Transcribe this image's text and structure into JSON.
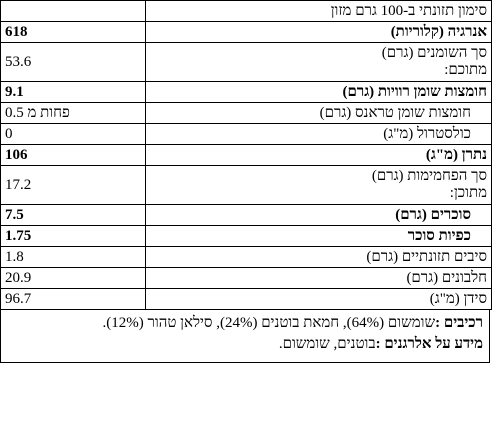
{
  "header": "סימון תזונתי ב-100 גרם מזון",
  "rows": [
    {
      "label": "אנרגיה (קלוריות)",
      "value": "618",
      "bold": true
    },
    {
      "label": "סך השומנים (גרם)",
      "label2": "מתוכם:",
      "value": "53.6",
      "bold": false
    },
    {
      "label": "חומצות שומן רוויות (גרם)",
      "value": "9.1",
      "bold": true
    },
    {
      "label": "חומצות שומן טראנס (גרם)",
      "value": "פחות מ 0.5",
      "bold": false
    },
    {
      "label": "כולסטרול (מ\"ג)",
      "value": "0",
      "bold": false
    },
    {
      "label": "נתרן (מ\"ג)",
      "value": "106",
      "bold": true
    },
    {
      "label": "סך הפחמימות (גרם)",
      "label2": "מתוכן:",
      "value": "17.2",
      "bold": false
    },
    {
      "label": "סוכרים (גרם)",
      "value": "7.5",
      "bold": true
    },
    {
      "label": "כפיות סוכר",
      "value": "1.75",
      "bold": true
    },
    {
      "label": "סיבים תזונתיים (גרם)",
      "value": "1.8",
      "bold": false
    },
    {
      "label": "חלבונים (גרם)",
      "value": "20.9",
      "bold": false
    },
    {
      "label": "סידן (מ\"ג)",
      "value": "96.7",
      "bold": false
    }
  ],
  "ingredients": {
    "title": "רכיבים :",
    "text": "שומשום (64%), חמאת בוטנים (24%), סילאן טהור (12%)."
  },
  "allergens": {
    "title": "מידע על אלרגנים :",
    "text": "בוטנים, שומשום."
  }
}
